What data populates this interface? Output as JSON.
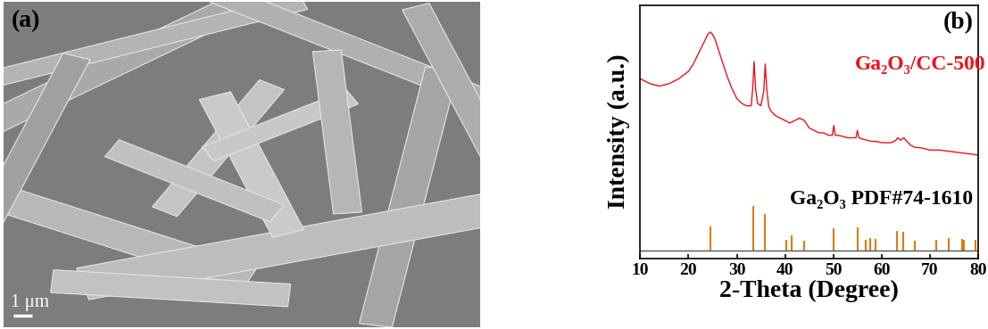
{
  "chart_data": [
    {
      "type": "image",
      "annotations": [
        "(a)",
        "1 μm"
      ]
    },
    {
      "type": "line",
      "annotations": [
        "(b)"
      ],
      "xlabel": "2-Theta (Degree)",
      "ylabel": "Intensity (a.u.)",
      "xlim": [
        10,
        80
      ],
      "xticks": [
        10,
        20,
        30,
        40,
        50,
        60,
        70,
        80
      ],
      "ylim": [
        -3,
        100
      ],
      "yticks": [],
      "tick_labels": "x",
      "series": [
        {
          "name": "Ga₂O₃/CC-500",
          "type": "line",
          "color": "#e8141c",
          "x": [
            10,
            12,
            14,
            16,
            18,
            20,
            21,
            22,
            23,
            24,
            24.5,
            25,
            25.5,
            26,
            27,
            28,
            29,
            30,
            31,
            32,
            33,
            33.3,
            33.6,
            33.9,
            34.3,
            35,
            35.6,
            35.9,
            36.2,
            36.6,
            37,
            38,
            39,
            40,
            41,
            42,
            43,
            44,
            45,
            46,
            47,
            48,
            49,
            49.8,
            50.1,
            50.4,
            51,
            52,
            53,
            54,
            54.7,
            55,
            55.3,
            56,
            57,
            58,
            59,
            60,
            61,
            62,
            63,
            63.3,
            64,
            64.6,
            65,
            66,
            67,
            68,
            70,
            72,
            74,
            76,
            78,
            80
          ],
          "values": [
            70,
            68,
            67,
            68,
            70,
            73,
            76,
            80,
            84,
            88,
            89,
            88,
            86,
            83,
            77,
            71,
            66,
            62,
            60,
            59,
            59,
            66,
            77,
            66,
            60,
            59,
            65,
            76,
            66,
            59,
            57,
            55,
            54,
            53,
            52,
            53,
            54,
            53,
            50,
            49,
            48,
            48,
            47,
            47,
            51,
            47,
            47,
            46.5,
            46,
            46,
            46,
            49,
            46,
            45.5,
            45,
            44.5,
            44.5,
            44,
            44,
            44,
            45,
            46,
            45,
            46,
            45,
            43,
            42,
            42,
            41,
            41,
            40.5,
            40,
            39.5,
            39
          ]
        },
        {
          "name": "Ga₂O₃ PDF#74-1610",
          "type": "stem",
          "color": "#e07b10",
          "base": 0,
          "x": [
            24.5,
            33.5,
            35.9,
            40.3,
            41.4,
            44.0,
            50.1,
            55.0,
            56.7,
            57.7,
            58.7,
            63.1,
            64.5,
            66.9,
            71.3,
            74.0,
            76.6,
            77.1,
            79.5
          ],
          "values": [
            9.8,
            18.2,
            15.1,
            4.6,
            6.3,
            4.2,
            9.1,
            9.5,
            4.6,
            5.3,
            4.9,
            8.1,
            7.7,
            4.2,
            4.6,
            5.3,
            4.9,
            4.6,
            4.6
          ]
        }
      ]
    }
  ]
}
